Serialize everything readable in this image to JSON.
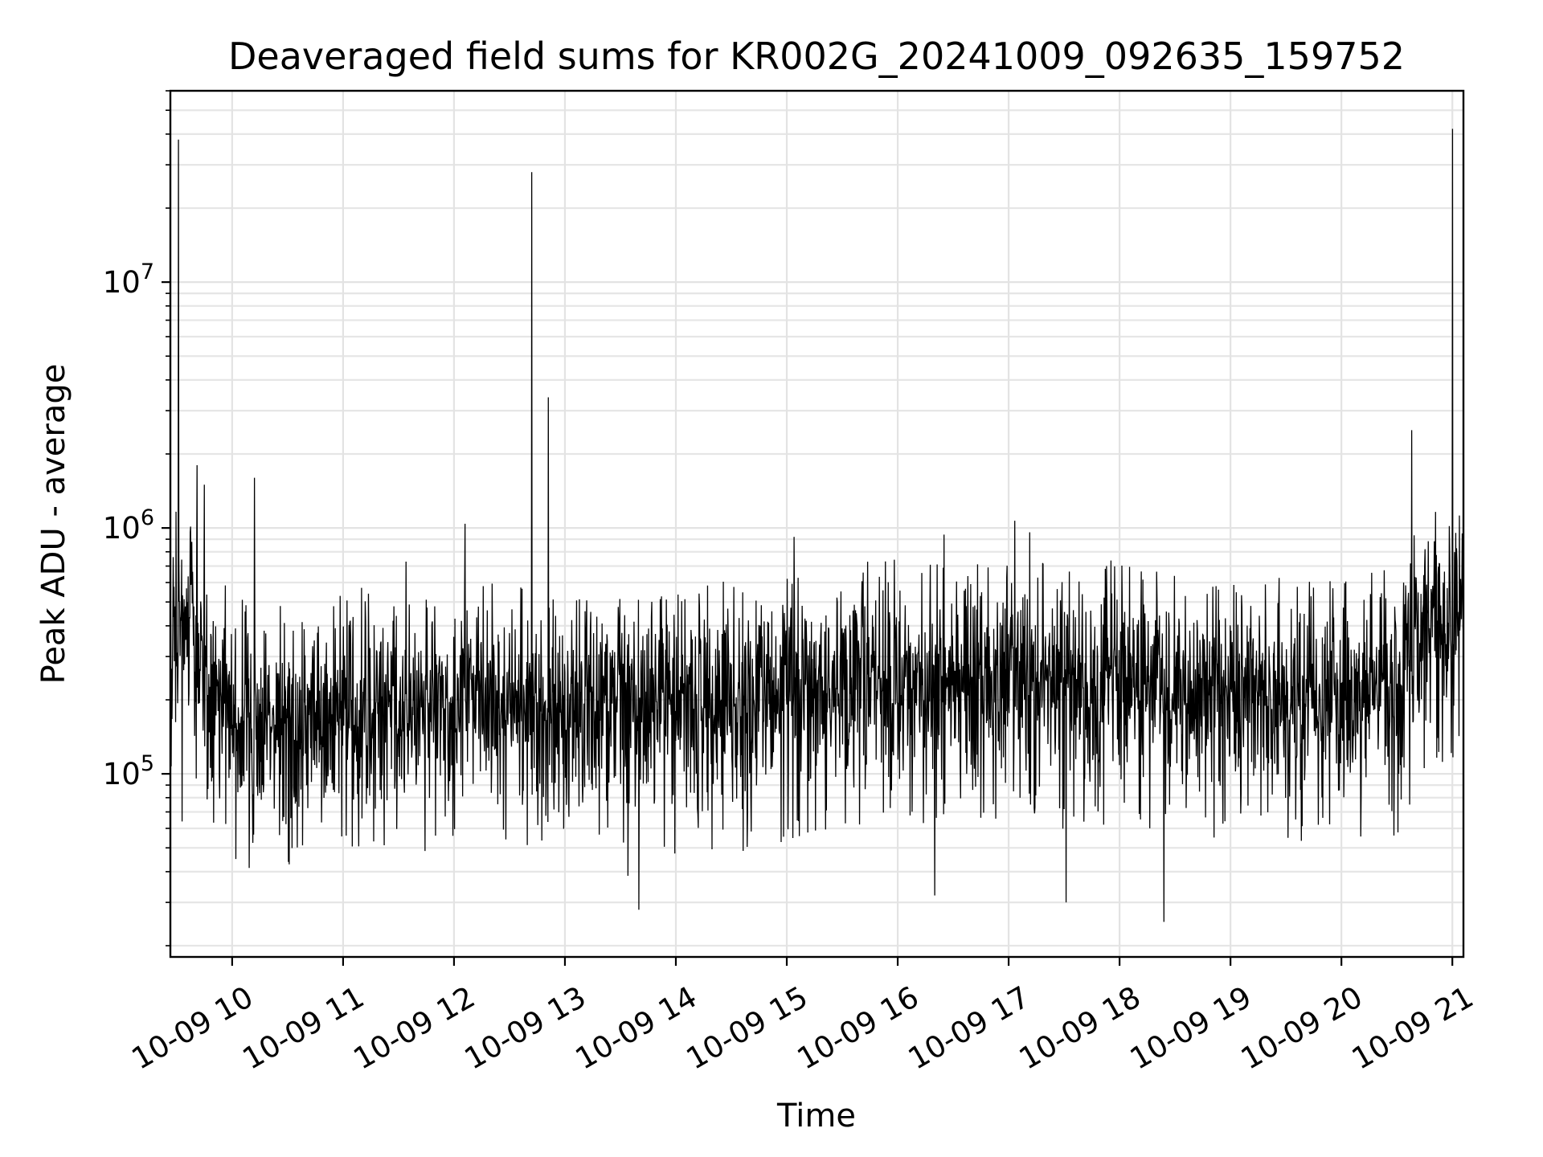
{
  "chart_data": {
    "type": "line",
    "title": "Deaveraged field sums for KR002G_20241009_092635_159752",
    "xlabel": "Time",
    "ylabel": "Peak ADU - average",
    "yscale": "log",
    "ylim": [
      18000,
      60000000
    ],
    "xlim": [
      "2024-10-09 09:26:35",
      "2024-10-09 21:06:00"
    ],
    "grid": true,
    "line_color": "#000000",
    "x_ticks": [
      {
        "value": "2024-10-09 10:00",
        "label": "10-09 10"
      },
      {
        "value": "2024-10-09 11:00",
        "label": "10-09 11"
      },
      {
        "value": "2024-10-09 12:00",
        "label": "10-09 12"
      },
      {
        "value": "2024-10-09 13:00",
        "label": "10-09 13"
      },
      {
        "value": "2024-10-09 14:00",
        "label": "10-09 14"
      },
      {
        "value": "2024-10-09 15:00",
        "label": "10-09 15"
      },
      {
        "value": "2024-10-09 16:00",
        "label": "10-09 16"
      },
      {
        "value": "2024-10-09 17:00",
        "label": "10-09 17"
      },
      {
        "value": "2024-10-09 18:00",
        "label": "10-09 18"
      },
      {
        "value": "2024-10-09 19:00",
        "label": "10-09 19"
      },
      {
        "value": "2024-10-09 20:00",
        "label": "10-09 20"
      },
      {
        "value": "2024-10-09 21:00",
        "label": "10-09 21"
      }
    ],
    "y_ticks": [
      {
        "value": 100000,
        "base": "10",
        "exp": "5"
      },
      {
        "value": 1000000,
        "base": "10",
        "exp": "6"
      },
      {
        "value": 10000000,
        "base": "10",
        "exp": "7"
      }
    ],
    "baseline": [
      [
        "2024-10-09 09:26:35",
        400000
      ],
      [
        "2024-10-09 09:40",
        360000
      ],
      [
        "2024-10-09 09:55",
        190000
      ],
      [
        "2024-10-09 10:10",
        160000
      ],
      [
        "2024-10-09 10:30",
        165000
      ],
      [
        "2024-10-09 11:00",
        180000
      ],
      [
        "2024-10-09 11:30",
        185000
      ],
      [
        "2024-10-09 12:00",
        200000
      ],
      [
        "2024-10-09 12:30",
        185000
      ],
      [
        "2024-10-09 13:00",
        180000
      ],
      [
        "2024-10-09 13:30",
        165000
      ],
      [
        "2024-10-09 14:00",
        185000
      ],
      [
        "2024-10-09 14:30",
        190000
      ],
      [
        "2024-10-09 15:00",
        205000
      ],
      [
        "2024-10-09 15:30",
        230000
      ],
      [
        "2024-10-09 16:00",
        240000
      ],
      [
        "2024-10-09 16:30",
        245000
      ],
      [
        "2024-10-09 17:00",
        240000
      ],
      [
        "2024-10-09 17:30",
        235000
      ],
      [
        "2024-10-09 18:00",
        235000
      ],
      [
        "2024-10-09 18:30",
        225000
      ],
      [
        "2024-10-09 19:00",
        215000
      ],
      [
        "2024-10-09 19:30",
        200000
      ],
      [
        "2024-10-09 20:00",
        195000
      ],
      [
        "2024-10-09 20:30",
        220000
      ],
      [
        "2024-10-09 20:40",
        400000
      ],
      [
        "2024-10-09 21:06",
        440000
      ]
    ],
    "spikes": [
      {
        "x": "2024-10-09 09:31",
        "y": 38000000
      },
      {
        "x": "2024-10-09 09:41",
        "y": 1800000
      },
      {
        "x": "2024-10-09 09:45",
        "y": 1500000
      },
      {
        "x": "2024-10-09 10:12",
        "y": 1600000
      },
      {
        "x": "2024-10-09 11:34",
        "y": 730000
      },
      {
        "x": "2024-10-09 12:06",
        "y": 1040000
      },
      {
        "x": "2024-10-09 12:42",
        "y": 28000000
      },
      {
        "x": "2024-10-09 12:51",
        "y": 3400000
      },
      {
        "x": "2024-10-09 15:04",
        "y": 920000
      },
      {
        "x": "2024-10-09 16:25",
        "y": 940000
      },
      {
        "x": "2024-10-09 20:38",
        "y": 2500000
      },
      {
        "x": "2024-10-09 21:00",
        "y": 42000000
      }
    ],
    "dips": [
      {
        "x": "2024-10-09 09:33",
        "y": 64000
      },
      {
        "x": "2024-10-09 13:40",
        "y": 28000
      },
      {
        "x": "2024-10-09 16:20",
        "y": 32000
      },
      {
        "x": "2024-10-09 17:31",
        "y": 30000
      },
      {
        "x": "2024-10-09 18:24",
        "y": 25000
      },
      {
        "x": "2024-10-09 20:37",
        "y": 75000
      }
    ]
  }
}
